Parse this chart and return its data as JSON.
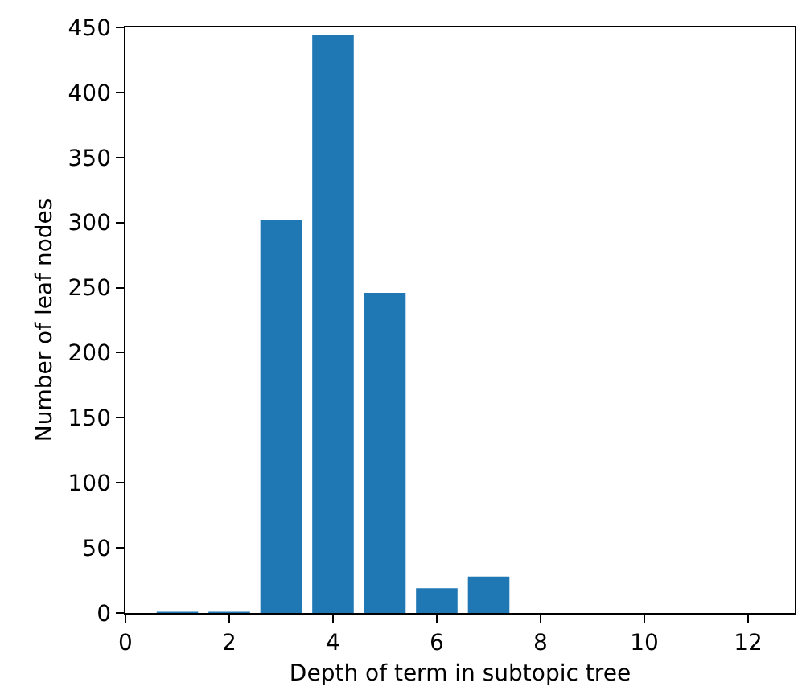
{
  "chart_data": {
    "type": "bar",
    "x": [
      1,
      2,
      3,
      4,
      5,
      6,
      7
    ],
    "values": [
      1,
      1,
      302,
      444,
      246,
      19,
      28
    ],
    "color": "#1f77b4",
    "xlabel": "Depth of term in subtopic tree",
    "ylabel": "Number of leaf nodes",
    "xlim": [
      0,
      12.9
    ],
    "xticks": [
      0,
      2,
      4,
      6,
      8,
      10,
      12
    ],
    "ylim": [
      0,
      450
    ],
    "yticks": [
      0,
      50,
      100,
      150,
      200,
      250,
      300,
      350,
      400,
      450
    ],
    "grid": false
  }
}
